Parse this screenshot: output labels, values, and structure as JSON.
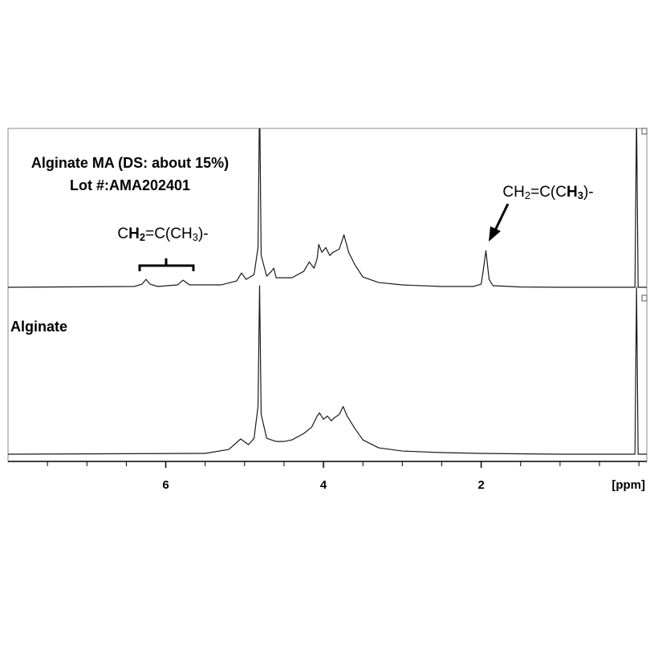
{
  "chart_data": {
    "type": "line",
    "xlabel": "[ppm]",
    "xlim": [
      8.0,
      -0.1
    ],
    "xticks": [
      6,
      4,
      2
    ],
    "xminorticks": [
      7.5,
      7,
      6.5,
      5.5,
      5,
      4.5,
      3.5,
      3,
      2.5,
      1.5,
      1,
      0.5,
      0
    ],
    "series": [
      {
        "name": "Alginate MA (DS: about 15%)",
        "subtitle": "Lot #:AMA202401",
        "color": "#1a1a1a",
        "ylim": [
          0,
          100
        ],
        "x": [
          8.0,
          6.4,
          6.3,
          6.25,
          6.2,
          6.1,
          5.85,
          5.78,
          5.7,
          5.3,
          5.1,
          5.04,
          4.98,
          4.88,
          4.83,
          4.81,
          4.79,
          4.72,
          4.66,
          4.63,
          4.6,
          4.4,
          4.25,
          4.18,
          4.12,
          4.08,
          4.06,
          4.02,
          3.97,
          3.92,
          3.88,
          3.8,
          3.74,
          3.68,
          3.6,
          3.5,
          3.3,
          3.0,
          2.5,
          2.1,
          2.0,
          1.97,
          1.94,
          1.9,
          1.85,
          1.5,
          1.0,
          0.5,
          0.1,
          0.05,
          0.03,
          0.01,
          -0.1
        ],
        "values": [
          0,
          0.5,
          2,
          5,
          2,
          0.5,
          1.5,
          4.5,
          1.5,
          1.5,
          4,
          9,
          5,
          8,
          25,
          120,
          20,
          7,
          10,
          12,
          6,
          6,
          10,
          16,
          12,
          18,
          27,
          22,
          25,
          20,
          22,
          24,
          33,
          22,
          14,
          6.5,
          3,
          1.5,
          0.5,
          0.5,
          2,
          12,
          23,
          5,
          1,
          0.2,
          0,
          0,
          0,
          0,
          110,
          0,
          0
        ]
      },
      {
        "name": "Alginate",
        "color": "#1a1a1a",
        "ylim": [
          0,
          100
        ],
        "x": [
          8.0,
          5.5,
          5.2,
          5.05,
          4.95,
          4.88,
          4.83,
          4.81,
          4.79,
          4.72,
          4.6,
          4.5,
          4.4,
          4.25,
          4.15,
          4.08,
          4.05,
          4.0,
          3.95,
          3.9,
          3.86,
          3.8,
          3.75,
          3.7,
          3.6,
          3.5,
          3.3,
          3.0,
          2.5,
          2.0,
          1.0,
          0.1,
          0.05,
          0.03,
          0.01,
          -0.1
        ],
        "values": [
          0,
          0.5,
          3,
          9.6,
          6,
          10,
          30,
          106,
          25,
          10,
          8,
          8,
          9,
          13,
          17,
          24,
          26,
          22,
          24,
          21,
          23,
          25,
          30,
          24,
          16,
          9,
          4,
          2,
          1,
          0.5,
          0,
          0,
          0,
          105,
          0,
          0
        ]
      }
    ],
    "annotations": [
      {
        "parts": [
          {
            "text": "C"
          },
          {
            "text": "H",
            "bold": true
          },
          {
            "text": "2",
            "bold": true,
            "sub": true
          },
          {
            "text": "=C(CH"
          },
          {
            "text": "3",
            "sub": true
          },
          {
            "text": ")-"
          }
        ]
      },
      {
        "parts": [
          {
            "text": "CH"
          },
          {
            "text": "2",
            "sub": true
          },
          {
            "text": "=C(C"
          },
          {
            "text": "H",
            "bold": true
          },
          {
            "text": "3",
            "bold": true,
            "sub": true
          },
          {
            "text": ")-"
          }
        ]
      }
    ]
  }
}
